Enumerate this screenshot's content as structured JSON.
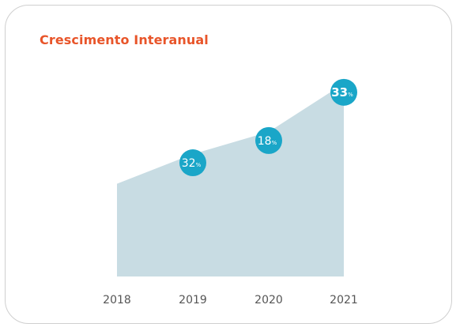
{
  "chart_data": {
    "type": "area",
    "title": "Crescimento Interanual",
    "categories": [
      "2018",
      "2019",
      "2020",
      "2021"
    ],
    "values": [
      100,
      132,
      156,
      208
    ],
    "data_labels": [
      null,
      {
        "value": "32",
        "unit": "%"
      },
      {
        "value": "18",
        "unit": "%"
      },
      {
        "value": "33",
        "unit": "%"
      }
    ],
    "ylim": [
      0,
      230
    ],
    "grid": false,
    "colors": {
      "area": "#c8dce3",
      "marker": "#1aa6c8",
      "title": "#e8552a",
      "tick_text": "#555555"
    }
  }
}
